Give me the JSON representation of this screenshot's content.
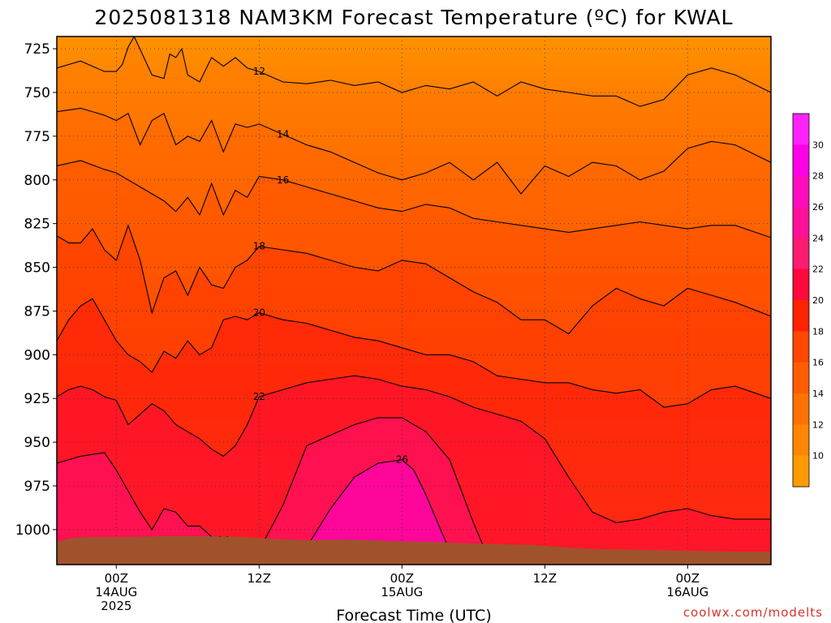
{
  "page": {
    "credit": "coolwx.com/modelts"
  },
  "chart_data": {
    "type": "heatmap",
    "title": "2025081318 NAM3KM Forecast Temperature (ºC) for KWAL",
    "xlabel": "Forecast Time (UTC)",
    "ylabel": "",
    "x_range_hours_from_14AUG_00Z": [
      -5,
      55
    ],
    "y_range_hPa": [
      1020,
      718
    ],
    "y_ticks": [
      "725",
      "750",
      "775",
      "800",
      "825",
      "850",
      "875",
      "900",
      "925",
      "950",
      "975",
      "1000"
    ],
    "y_tick_values": [
      725,
      750,
      775,
      800,
      825,
      850,
      875,
      900,
      925,
      950,
      975,
      1000
    ],
    "x_ticks": [
      {
        "hour": 0,
        "lines": [
          "00Z",
          "14AUG",
          "2025"
        ]
      },
      {
        "hour": 12,
        "lines": [
          "12Z"
        ]
      },
      {
        "hour": 24,
        "lines": [
          "00Z",
          "15AUG"
        ]
      },
      {
        "hour": 36,
        "lines": [
          "12Z"
        ]
      },
      {
        "hour": 48,
        "lines": [
          "00Z",
          "16AUG"
        ]
      }
    ],
    "grid": "dotted",
    "colorbar": {
      "labels": [
        "10",
        "12",
        "14",
        "16",
        "18",
        "20",
        "22",
        "24",
        "26",
        "28",
        "30"
      ],
      "levels": [
        10,
        12,
        14,
        16,
        18,
        20,
        22,
        24,
        26,
        28,
        30
      ],
      "colors": [
        "#ff9b00",
        "#ff8600",
        "#ff7100",
        "#ff5c00",
        "#ff4700",
        "#ff2200",
        "#ff0a3a",
        "#ff1a72",
        "#ff1199",
        "#ff0cbf",
        "#ff00e6",
        "#ff22ff"
      ]
    },
    "contours": [
      {
        "label": "12",
        "hours": [
          -5,
          -3,
          -1,
          0,
          0.5,
          1,
          1.5,
          3,
          4,
          4.5,
          5,
          5.5,
          6,
          7,
          8,
          9,
          10,
          11,
          12,
          14,
          16,
          18,
          20,
          22,
          24,
          26,
          28,
          30,
          32,
          34,
          36,
          38,
          40,
          42,
          44,
          46,
          48,
          50,
          52,
          55
        ],
        "pressures": [
          736,
          732,
          738,
          738,
          734,
          724,
          718,
          740,
          742,
          728,
          730,
          725,
          740,
          744,
          730,
          735,
          730,
          736,
          738,
          744,
          745,
          743,
          746,
          744,
          750,
          746,
          748,
          744,
          752,
          744,
          748,
          750,
          752,
          752,
          758,
          754,
          740,
          736,
          740,
          750
        ]
      },
      {
        "label": "14",
        "hours": [
          -5,
          -3,
          -1,
          0,
          1,
          2,
          3,
          4,
          5,
          6,
          7,
          8,
          9,
          10,
          11,
          12,
          14,
          16,
          18,
          20,
          22,
          24,
          26,
          28,
          30,
          32,
          34,
          36,
          38,
          40,
          42,
          44,
          46,
          48,
          50,
          52,
          55
        ],
        "pressures": [
          761,
          759,
          763,
          766,
          762,
          780,
          766,
          762,
          780,
          775,
          778,
          766,
          784,
          768,
          770,
          768,
          774,
          780,
          784,
          790,
          796,
          800,
          796,
          790,
          800,
          790,
          808,
          792,
          798,
          790,
          792,
          800,
          795,
          782,
          778,
          780,
          790
        ]
      },
      {
        "label": "16",
        "hours": [
          -5,
          -3,
          -1,
          0,
          1,
          2,
          3,
          4,
          5,
          6,
          7,
          8,
          9,
          10,
          11,
          12,
          14,
          16,
          18,
          20,
          22,
          24,
          26,
          28,
          30,
          32,
          34,
          36,
          38,
          40,
          42,
          44,
          46,
          48,
          50,
          52,
          55
        ],
        "pressures": [
          792,
          789,
          794,
          796,
          800,
          804,
          808,
          812,
          818,
          810,
          820,
          802,
          820,
          806,
          810,
          798,
          800,
          804,
          808,
          812,
          816,
          818,
          814,
          816,
          822,
          824,
          826,
          828,
          830,
          828,
          826,
          824,
          826,
          828,
          826,
          826,
          833
        ]
      },
      {
        "label": "18",
        "hours": [
          -5,
          -4,
          -3,
          -2,
          -1,
          0,
          1,
          2,
          3,
          4,
          5,
          6,
          7,
          8,
          9,
          10,
          11,
          12,
          14,
          16,
          18,
          20,
          22,
          24,
          26,
          28,
          30,
          32,
          34,
          36,
          38,
          40,
          42,
          44,
          46,
          48,
          50,
          52,
          55
        ],
        "pressures": [
          832,
          836,
          836,
          828,
          840,
          846,
          826,
          846,
          876,
          856,
          852,
          866,
          850,
          860,
          862,
          850,
          846,
          838,
          840,
          842,
          846,
          850,
          852,
          846,
          848,
          856,
          864,
          870,
          880,
          880,
          888,
          872,
          862,
          868,
          872,
          862,
          866,
          870,
          878
        ]
      },
      {
        "label": "20",
        "hours": [
          -5,
          -4,
          -3,
          -2,
          -1,
          0,
          1,
          2,
          3,
          4,
          5,
          6,
          7,
          8,
          9,
          10,
          11,
          12,
          14,
          16,
          18,
          20,
          22,
          24,
          26,
          28,
          30,
          32,
          34,
          36,
          38,
          40,
          42,
          44,
          46,
          48,
          50,
          52,
          55
        ],
        "pressures": [
          892,
          880,
          872,
          868,
          880,
          892,
          900,
          904,
          910,
          898,
          902,
          892,
          900,
          896,
          880,
          878,
          880,
          876,
          880,
          882,
          886,
          890,
          892,
          896,
          900,
          900,
          904,
          912,
          914,
          916,
          916,
          920,
          922,
          920,
          930,
          928,
          920,
          918,
          925
        ]
      },
      {
        "label": "22",
        "hours": [
          -5,
          -4,
          -3,
          -2,
          -1,
          0,
          1,
          2,
          3,
          4,
          5,
          6,
          7,
          8,
          9,
          10,
          11,
          12,
          14,
          16,
          18,
          20,
          22,
          24,
          26,
          28,
          30,
          32,
          34,
          36,
          38,
          40,
          42,
          44,
          46,
          48,
          50,
          52,
          55
        ],
        "pressures": [
          924,
          920,
          918,
          920,
          924,
          926,
          940,
          934,
          928,
          932,
          940,
          944,
          948,
          954,
          958,
          952,
          940,
          924,
          920,
          916,
          914,
          912,
          914,
          918,
          920,
          924,
          930,
          934,
          938,
          948,
          970,
          990,
          996,
          994,
          990,
          988,
          992,
          994,
          994
        ]
      },
      {
        "label": "24",
        "hours": [
          -5,
          -3,
          -1,
          0,
          1,
          2,
          3,
          4,
          5,
          6,
          7,
          8,
          9,
          10,
          11,
          12,
          14,
          16,
          18,
          20,
          22,
          24,
          26,
          28,
          29,
          30,
          31
        ],
        "pressures": [
          962,
          958,
          956,
          966,
          978,
          990,
          1000,
          988,
          990,
          998,
          998,
          1004,
          1006,
          1008,
          1010,
          1012,
          986,
          952,
          946,
          940,
          936,
          936,
          944,
          960,
          978,
          996,
          1012
        ]
      },
      {
        "label": "26",
        "hours": [
          16,
          18,
          20,
          22,
          24,
          25,
          26,
          27,
          28
        ],
        "pressures": [
          1010,
          988,
          970,
          962,
          960,
          966,
          980,
          996,
          1012
        ]
      }
    ]
  }
}
